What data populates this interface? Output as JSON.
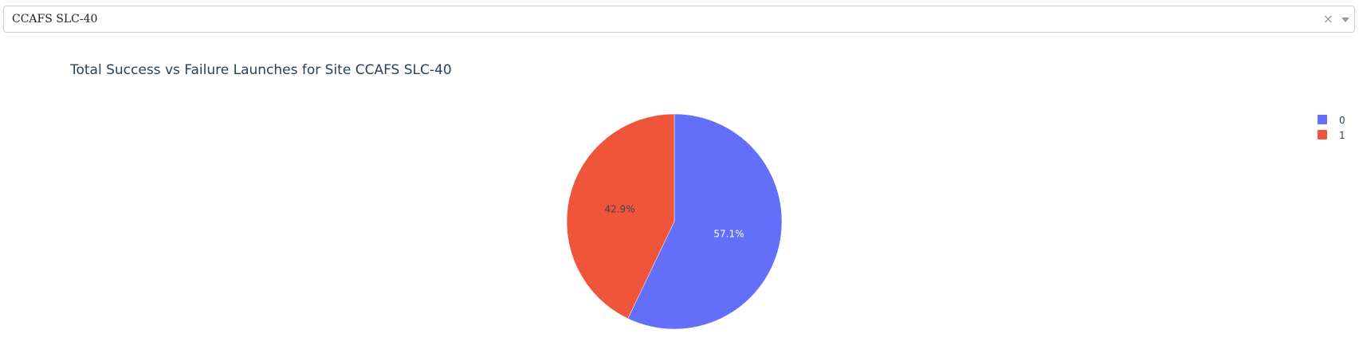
{
  "dropdown": {
    "selected": "CCAFS SLC-40",
    "clear_symbol": "×"
  },
  "chart_data": {
    "type": "pie",
    "title": "Total Success vs Failure Launches for Site CCAFS SLC-40",
    "slices": [
      {
        "label": "0",
        "value": 57.1,
        "display": "57.1%",
        "color": "#636efa",
        "text_color": "#ffffff"
      },
      {
        "label": "1",
        "value": 42.9,
        "display": "42.9%",
        "color": "#ef553b",
        "text_color": "#444444"
      }
    ],
    "legend": {
      "placement": "top-right"
    }
  }
}
